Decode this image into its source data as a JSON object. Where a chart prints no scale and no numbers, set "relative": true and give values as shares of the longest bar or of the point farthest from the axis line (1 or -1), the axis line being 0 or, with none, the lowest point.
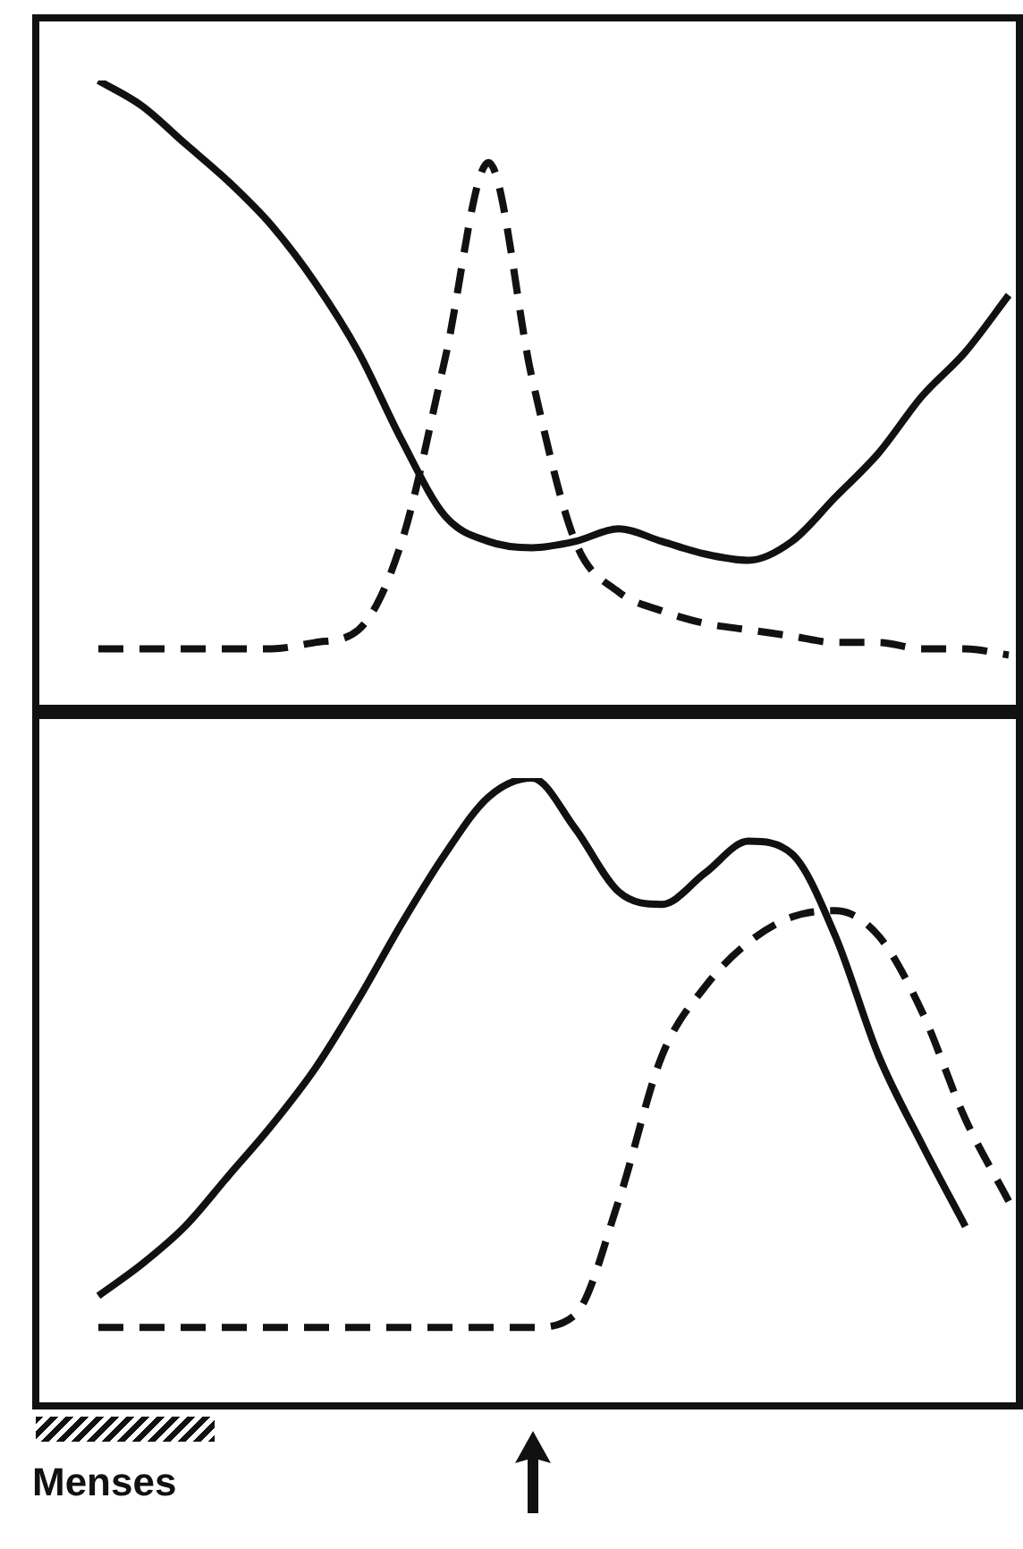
{
  "chart_data": [
    {
      "type": "line",
      "relative": true,
      "marker": "none",
      "categories": [
        null,
        null,
        null,
        null,
        null,
        null,
        null,
        null,
        null,
        null,
        null,
        null,
        null,
        null,
        null,
        null,
        null,
        null,
        null,
        null,
        null,
        null
      ],
      "series": [
        {
          "color": "#111111",
          "line_style": "solid",
          "values": [
            1.0,
            0.96,
            0.9,
            0.84,
            0.77,
            0.68,
            0.57,
            0.43,
            0.31,
            0.27,
            0.26,
            0.27,
            0.29,
            0.27,
            0.25,
            0.24,
            0.27,
            0.34,
            0.41,
            0.5,
            0.57,
            0.66
          ]
        },
        {
          "color": "#111111",
          "line_style": "dashed",
          "values": [
            0.1,
            0.1,
            0.1,
            0.1,
            0.1,
            0.11,
            0.13,
            0.27,
            0.56,
            0.87,
            0.53,
            0.27,
            0.19,
            0.16,
            0.14,
            0.13,
            0.12,
            0.11,
            0.11,
            0.1,
            0.1,
            0.09
          ]
        }
      ]
    },
    {
      "type": "line",
      "relative": true,
      "marker": "none",
      "categories": [
        null,
        null,
        null,
        null,
        null,
        null,
        null,
        null,
        null,
        null,
        null,
        null,
        null,
        null,
        null,
        null,
        null,
        null,
        null,
        null,
        null,
        null
      ],
      "annotations": [
        "Menses"
      ],
      "series": [
        {
          "color": "#111111",
          "line_style": "solid",
          "values": [
            0.18,
            0.23,
            0.29,
            0.37,
            0.45,
            0.54,
            0.65,
            0.77,
            0.88,
            0.97,
            1.0,
            0.92,
            0.82,
            0.8,
            0.85,
            0.9,
            0.88,
            0.75,
            0.56,
            0.42,
            0.29,
            null
          ]
        },
        {
          "color": "#111111",
          "line_style": "dashed",
          "values": [
            0.13,
            0.13,
            0.13,
            0.13,
            0.13,
            0.13,
            0.13,
            0.13,
            0.13,
            0.13,
            0.13,
            0.15,
            0.33,
            0.56,
            0.67,
            0.74,
            0.78,
            0.79,
            0.75,
            0.63,
            0.46,
            0.33
          ]
        }
      ]
    }
  ]
}
